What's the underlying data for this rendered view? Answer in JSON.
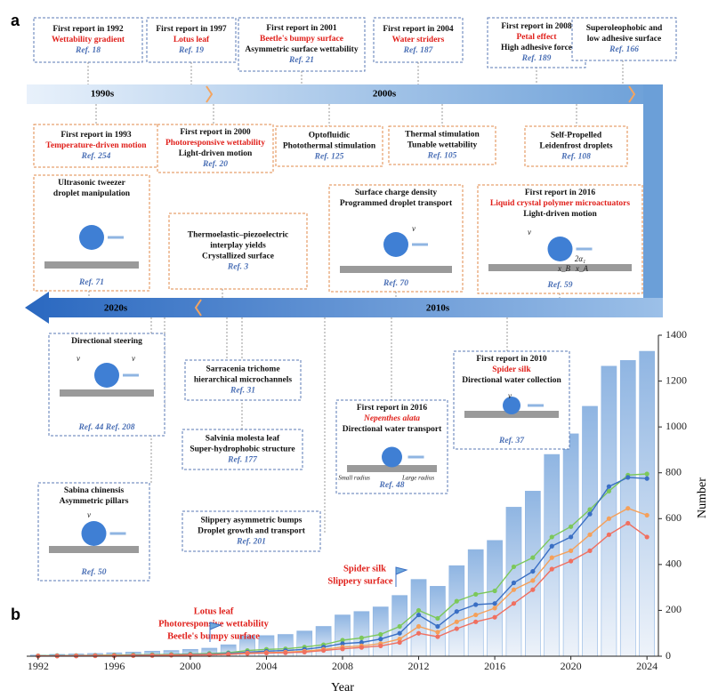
{
  "panels": {
    "a": "a",
    "b": "b"
  },
  "timeline": {
    "decades": [
      "1990s",
      "2000s",
      "2010s",
      "2020s"
    ]
  },
  "boxes": [
    {
      "heading": "First report in 1992",
      "highlight": "Wettability gradient",
      "ref": "Ref. 18"
    },
    {
      "heading": "First report in 1997",
      "highlight": "Lotus leaf",
      "ref": "Ref. 19"
    },
    {
      "heading": "First report in 2001",
      "highlight": "Beetle's bumpy surface",
      "lines": [
        "Asymmetric surface wettability"
      ],
      "ref": "Ref. 21"
    },
    {
      "heading": "First report in 2004",
      "highlight": "Water striders",
      "ref": "Ref. 187"
    },
    {
      "heading": "First report in 2008",
      "highlight": "Petal effect",
      "lines": [
        "High adhesive force"
      ],
      "ref": "Ref. 189"
    },
    {
      "lines": [
        "Superoleophobic and",
        "low adhesive surface"
      ],
      "ref": "Ref. 166"
    },
    {
      "heading": "First report in 1993",
      "highlight": "Temperature-driven motion",
      "ref": "Ref. 254"
    },
    {
      "heading": "First report in 2000",
      "highlight": "Photoresponsive wettability",
      "lines": [
        "Light-driven motion"
      ],
      "ref": "Ref. 20"
    },
    {
      "lines": [
        "Optofluidic",
        "Photothermal stimulation"
      ],
      "ref": "Ref. 125"
    },
    {
      "lines": [
        "Thermal stimulation",
        "Tunable wettability"
      ],
      "ref": "Ref. 105"
    },
    {
      "lines": [
        "Self-Propelled",
        "Leidenfrost droplets"
      ],
      "ref": "Ref. 108"
    },
    {
      "lines": [
        "Ultrasonic tweezer",
        "droplet manipulation"
      ],
      "ref": "Ref. 71"
    },
    {
      "lines": [
        "Thermoelastic–piezoelectric",
        "interplay yields",
        "Crystallized surface"
      ],
      "ref": "Ref. 3"
    },
    {
      "lines": [
        "Surface charge density",
        "Programmed droplet transport"
      ],
      "ref": "Ref. 70",
      "image_labels": [
        "v"
      ]
    },
    {
      "heading": "First report in 2016",
      "highlight": "Liquid crystal polymer microactuators",
      "lines": [
        "Light-driven motion"
      ],
      "ref": "Ref. 59",
      "image_labels": [
        "v",
        "2α₁",
        "x_B",
        "x_A"
      ]
    },
    {
      "lines": [
        "Directional steering"
      ],
      "ref": "Ref. 44  Ref. 208",
      "image_labels": [
        "v",
        "v"
      ]
    },
    {
      "lines": [
        "Sarracenia trichome",
        "hierarchical microchannels"
      ],
      "ref": "Ref. 31"
    },
    {
      "lines": [
        "Salvinia molesta leaf",
        "Super-hydrophobic structure"
      ],
      "ref": "Ref. 177"
    },
    {
      "heading": "First report in 2016",
      "highlight": "Nepenthes alata",
      "lines": [
        "Directional water transport"
      ],
      "ref": "Ref. 48",
      "image_labels": [
        "Small radius",
        "Large radius"
      ]
    },
    {
      "heading": "First report in 2010",
      "highlight": "Spider silk",
      "lines": [
        "Directional water collection"
      ],
      "ref": "Ref. 37",
      "image_labels": [
        "v"
      ]
    },
    {
      "lines": [
        "Sabina chinensis",
        "Asymmetric pillars"
      ],
      "ref": "Ref. 50",
      "image_labels": [
        "v"
      ]
    },
    {
      "lines": [
        "Slippery asymmetric bumps",
        "Droplet growth and transport"
      ],
      "ref": "Ref. 201"
    }
  ],
  "chart_data": {
    "type": "bar",
    "xlabel": "Year",
    "ylabel": "Number",
    "x": [
      1992,
      1993,
      1994,
      1995,
      1996,
      1997,
      1998,
      1999,
      2000,
      2001,
      2002,
      2003,
      2004,
      2005,
      2006,
      2007,
      2008,
      2009,
      2010,
      2011,
      2012,
      2013,
      2014,
      2015,
      2016,
      2017,
      2018,
      2019,
      2020,
      2021,
      2022,
      2023,
      2024
    ],
    "values": [
      5,
      8,
      10,
      12,
      15,
      18,
      22,
      25,
      30,
      35,
      50,
      90,
      90,
      95,
      110,
      130,
      180,
      195,
      215,
      265,
      335,
      305,
      395,
      465,
      505,
      650,
      720,
      880,
      970,
      1090,
      1265,
      1290,
      1330
    ],
    "color": "#8fb5e2",
    "series": [
      {
        "color": "#7cc85a",
        "values": [
          2,
          3,
          3,
          4,
          5,
          6,
          7,
          8,
          10,
          12,
          15,
          25,
          30,
          32,
          40,
          50,
          70,
          80,
          95,
          130,
          200,
          165,
          240,
          270,
          285,
          390,
          430,
          520,
          565,
          640,
          720,
          790,
          795
        ]
      },
      {
        "color": "#3a6fc4",
        "values": [
          1,
          2,
          2,
          3,
          3,
          4,
          5,
          6,
          8,
          9,
          12,
          18,
          22,
          25,
          30,
          40,
          55,
          60,
          75,
          100,
          180,
          130,
          195,
          225,
          230,
          320,
          370,
          480,
          520,
          620,
          740,
          780,
          775
        ]
      },
      {
        "color": "#f5a05a",
        "values": [
          1,
          1,
          2,
          2,
          3,
          3,
          4,
          5,
          6,
          7,
          9,
          14,
          16,
          18,
          22,
          30,
          40,
          45,
          55,
          75,
          130,
          105,
          150,
          180,
          210,
          290,
          330,
          430,
          460,
          530,
          600,
          645,
          615
        ]
      },
      {
        "color": "#f07060",
        "values": [
          1,
          1,
          1,
          2,
          2,
          3,
          3,
          4,
          5,
          6,
          8,
          12,
          14,
          15,
          18,
          25,
          32,
          38,
          45,
          60,
          100,
          85,
          120,
          150,
          170,
          230,
          290,
          380,
          415,
          460,
          530,
          580,
          520
        ]
      }
    ],
    "xlim": [
      1991.4,
      2024.6
    ],
    "xticks": [
      1992,
      1996,
      2000,
      2004,
      2008,
      2012,
      2016,
      2020,
      2024
    ],
    "ylim": [
      0,
      1400
    ],
    "yticks": [
      0,
      200,
      400,
      600,
      800,
      1000,
      1200,
      1400
    ],
    "annotations": [
      "Lotus leaf",
      "Photoresponsive wettability",
      "Beetle's bumpy surface",
      "Spider silk",
      "Slippery surface"
    ]
  }
}
